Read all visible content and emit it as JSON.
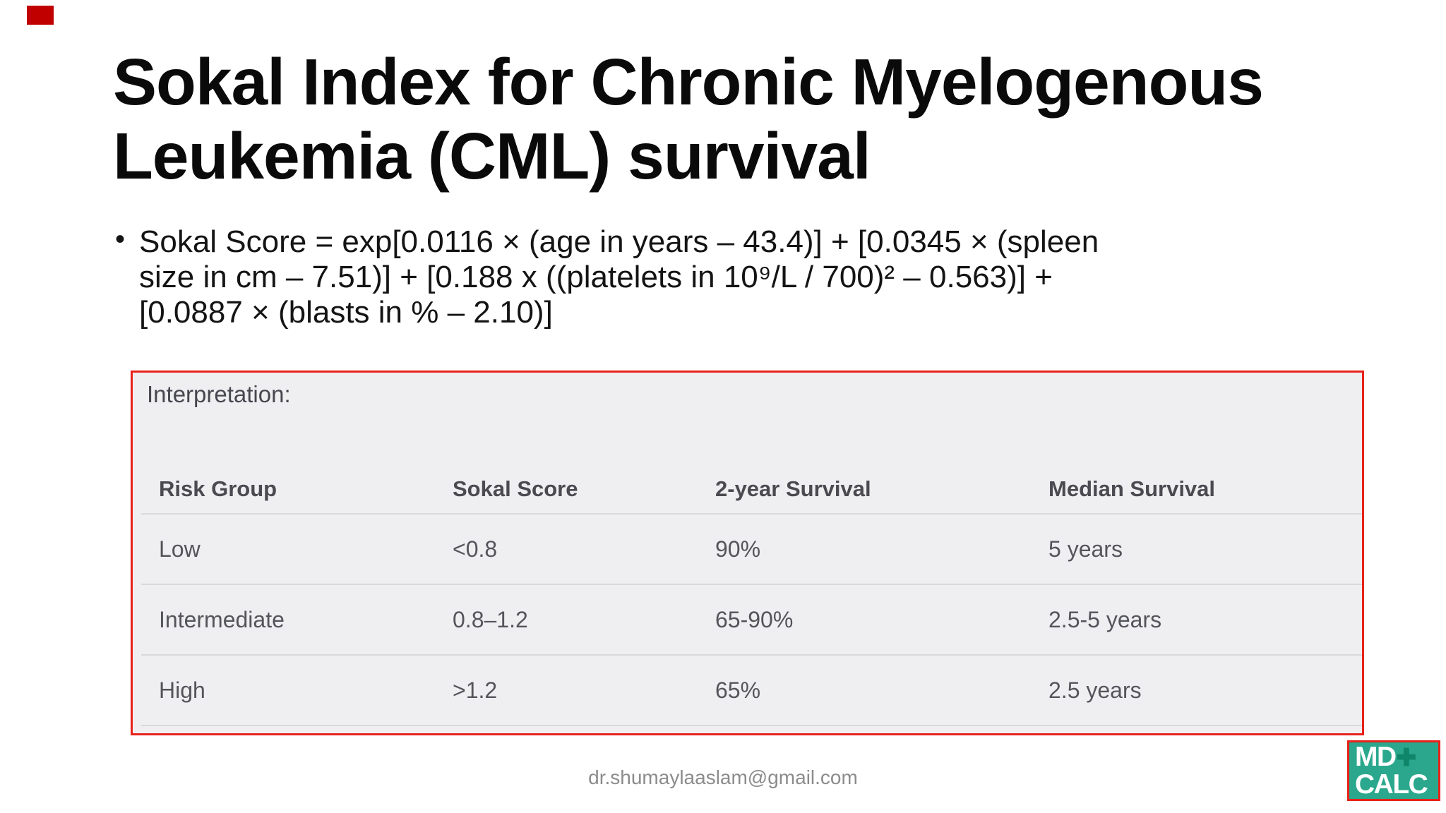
{
  "slide": {
    "title_lines": [
      "Sokal Index for Chronic Myelogenous",
      "Leukemia (CML) survival"
    ],
    "bullet_char": "•",
    "formula_lines": [
      "Sokal Score = exp[0.0116 × (age in years – 43.4)] + [0.0345 × (spleen",
      "size in cm – 7.51)] + [0.188 x ((platelets in 10⁹/L / 700)² – 0.563)] +",
      "[0.0887 × (blasts in % – 2.10)]"
    ],
    "footer_email": "dr.shumaylaaslam@gmail.com"
  },
  "interpretation_panel": {
    "label": "Interpretation:",
    "border_color": "#e8221a",
    "background_color": "#efeff1",
    "table": {
      "headers": [
        "Risk Group",
        "Sokal Score",
        "2-year Survival",
        "Median Survival"
      ],
      "rows": [
        [
          "Low",
          "<0.8",
          "90%",
          "5 years"
        ],
        [
          "Intermediate",
          "0.8–1.2",
          "65-90%",
          "2.5-5 years"
        ],
        [
          "High",
          ">1.2",
          "65%",
          "2.5 years"
        ]
      ]
    }
  },
  "logo": {
    "line1": "MD",
    "plus": "✚",
    "line2": "CALC",
    "background_color": "#2aa78c",
    "plus_color": "#0f8569",
    "border_color": "#e8221a"
  },
  "decorations": {
    "corner_square_color": "#c00000"
  }
}
